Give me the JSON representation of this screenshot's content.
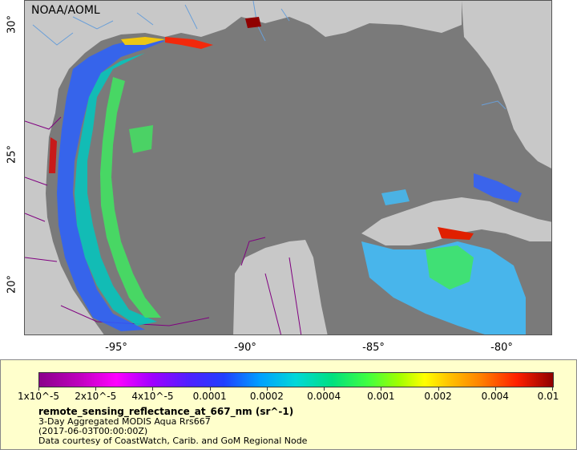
{
  "map": {
    "credit": "NOAA/AOML",
    "lat_ticks": [
      "30°",
      "25°",
      "20°"
    ],
    "lon_ticks": [
      "-95°",
      "-90°",
      "-85°",
      "-80°"
    ],
    "colors": {
      "ocean": "#7a7a7a",
      "land": "#c8c8c8",
      "rivers": "#6a9fd8",
      "borders": "#800080"
    }
  },
  "legend": {
    "colorbar_labels": [
      "1x10^-5",
      "2x10^-5",
      "4x10^-5",
      "0.0001",
      "0.0002",
      "0.0004",
      "0.001",
      "0.002",
      "0.004",
      "0.01"
    ],
    "variable": "remote_sensing_reflectance_at_667_nm (sr^-1)",
    "line1": "3-Day Aggregated MODIS Aqua Rrs667",
    "line2": "(2017-06-03T00:00:00Z)",
    "line3": "Data courtesy of CoastWatch, Carib. and GoM Regional Node"
  }
}
